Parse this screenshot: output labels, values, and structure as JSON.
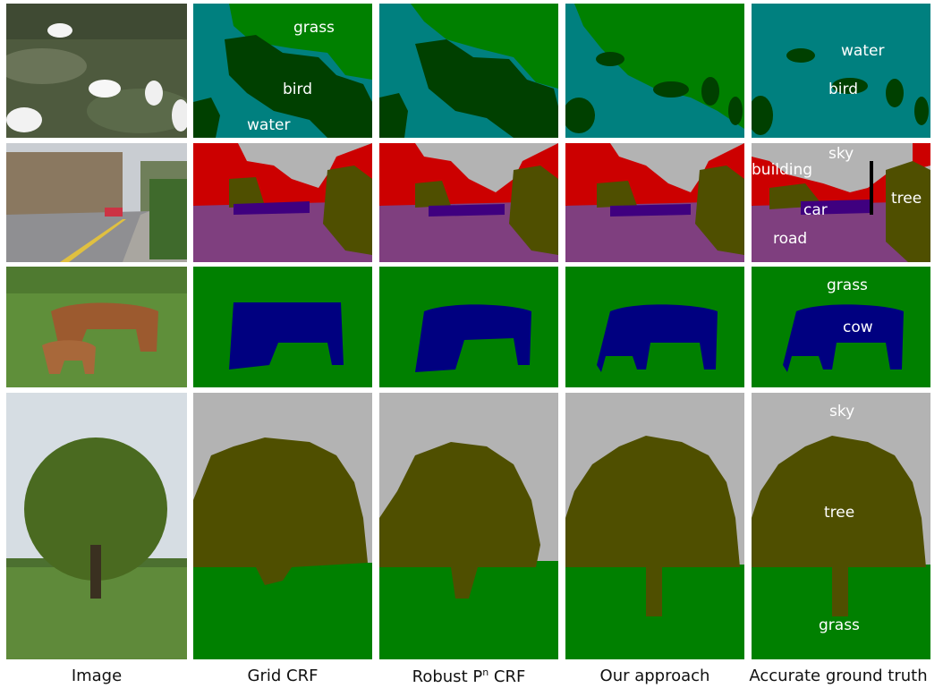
{
  "captions": {
    "image": "Image",
    "grid_crf": "Grid CRF",
    "robust_prefix": "Robust P",
    "robust_sup": "n",
    "robust_suffix": " CRF",
    "ours": "Our approach",
    "ground_truth": "Accurate ground truth"
  },
  "labels": {
    "grass": "grass",
    "bird": "bird",
    "water": "water",
    "sky": "sky",
    "building": "building",
    "tree": "tree",
    "car": "car",
    "road": "road",
    "cow": "cow"
  },
  "colors": {
    "water": "#00807f",
    "grass": "#008000",
    "bird": "#004000",
    "sky": "#b3b3b3",
    "building": "#cc0000",
    "tree": "#4f4f00",
    "road": "#7f3f7f",
    "car": "#3f007f",
    "cow": "#000080",
    "sign": "#000000"
  }
}
